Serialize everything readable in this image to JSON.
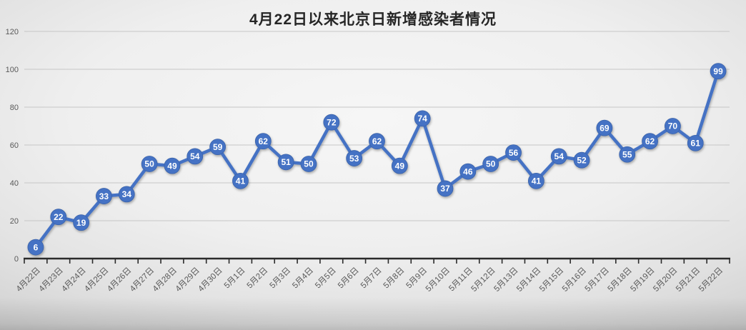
{
  "chart_data": {
    "type": "line",
    "title": "4月22日以来北京日新增感染者情况",
    "categories": [
      "4月22日",
      "4月23日",
      "4月24日",
      "4月25日",
      "4月26日",
      "4月27日",
      "4月28日",
      "4月29日",
      "4月30日",
      "5月1日",
      "5月2日",
      "5月3日",
      "5月4日",
      "5月5日",
      "5月6日",
      "5月7日",
      "5月8日",
      "5月9日",
      "5月10日",
      "5月11日",
      "5月12日",
      "5月13日",
      "5月14日",
      "5月15日",
      "5月16日",
      "5月17日",
      "5月18日",
      "5月19日",
      "5月20日",
      "5月21日",
      "5月22日"
    ],
    "values": [
      6,
      22,
      19,
      33,
      34,
      50,
      49,
      54,
      59,
      41,
      62,
      51,
      50,
      72,
      53,
      62,
      49,
      74,
      37,
      46,
      50,
      56,
      41,
      54,
      52,
      69,
      55,
      62,
      70,
      61,
      99
    ],
    "yticks": [
      0,
      20,
      40,
      60,
      80,
      100,
      120
    ],
    "ylim": [
      0,
      120
    ],
    "grid": true,
    "legend": "none",
    "data_labels": true
  },
  "colors": {
    "line": "#4472C4",
    "marker_fill": "#4472C4",
    "marker_edge": "#3A62A9",
    "data_label": "#FFFFFF",
    "axis_label": "#595959",
    "title": "#262626",
    "gridline": "#C6C6C6",
    "axis_line": "#2B2B2B"
  }
}
